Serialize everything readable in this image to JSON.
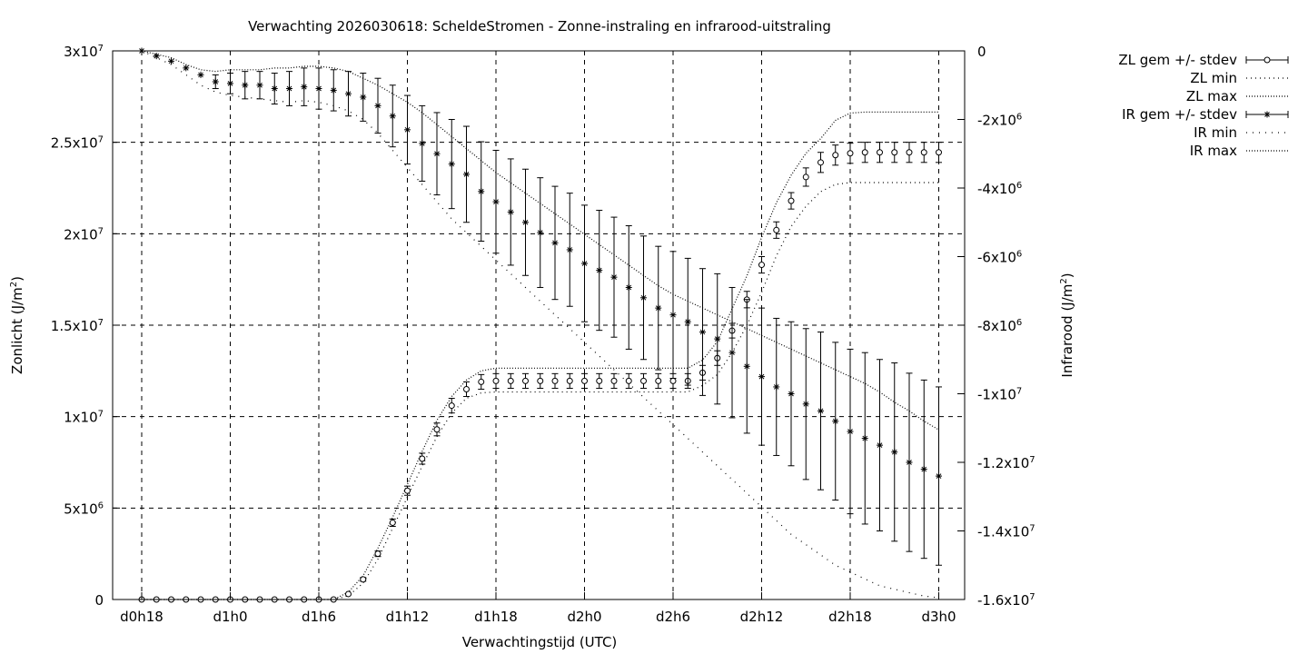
{
  "chart_data": {
    "type": "line",
    "title": "Verwachting 2026030618: ScheldeStromen - Zonne-instraling en infrarood-uitstraling",
    "xlabel": "Verwachtingstijd (UTC)",
    "ylabel_left": {
      "text": "Zonlicht (J/m",
      "sup": "2",
      "end": ")"
    },
    "ylabel_right": {
      "text": "Infrarood (J/m",
      "sup": "2",
      "end": ")"
    },
    "x_range": [
      -1,
      53
    ],
    "y_left_range": [
      0,
      30000000
    ],
    "y_right_range": [
      -16000000,
      0
    ],
    "x_ticks": [
      {
        "x": 0,
        "label": "d0h18"
      },
      {
        "x": 6,
        "label": "d1h0"
      },
      {
        "x": 12,
        "label": "d1h6"
      },
      {
        "x": 18,
        "label": "d1h12"
      },
      {
        "x": 24,
        "label": "d1h18"
      },
      {
        "x": 30,
        "label": "d2h0"
      },
      {
        "x": 36,
        "label": "d2h6"
      },
      {
        "x": 42,
        "label": "d2h12"
      },
      {
        "x": 48,
        "label": "d2h18"
      },
      {
        "x": 54,
        "label": "d3h0"
      }
    ],
    "y_left_ticks": [
      {
        "v": 0,
        "base": "0",
        "sup": ""
      },
      {
        "v": 5000000,
        "base": "5x10",
        "sup": "6"
      },
      {
        "v": 10000000,
        "base": "1x10",
        "sup": "7"
      },
      {
        "v": 15000000,
        "base": "1.5x10",
        "sup": "7"
      },
      {
        "v": 20000000,
        "base": "2x10",
        "sup": "7"
      },
      {
        "v": 25000000,
        "base": "2.5x10",
        "sup": "7"
      },
      {
        "v": 30000000,
        "base": "3x10",
        "sup": "7"
      }
    ],
    "y_right_ticks": [
      {
        "v": 0,
        "base": "0",
        "sup": ""
      },
      {
        "v": -2000000,
        "base": "-2x10",
        "sup": "6"
      },
      {
        "v": -4000000,
        "base": "-4x10",
        "sup": "6"
      },
      {
        "v": -6000000,
        "base": "-6x10",
        "sup": "6"
      },
      {
        "v": -8000000,
        "base": "-8x10",
        "sup": "6"
      },
      {
        "v": -10000000,
        "base": "-1x10",
        "sup": "7"
      },
      {
        "v": -12000000,
        "base": "-1.2x10",
        "sup": "7"
      },
      {
        "v": -14000000,
        "base": "-1.4x10",
        "sup": "7"
      },
      {
        "v": -16000000,
        "base": "-1.6x10",
        "sup": "7"
      }
    ],
    "grid": true,
    "legend_position": "right of plot, top",
    "legend": [
      "ZL gem +/- stdev",
      "ZL min",
      "ZL max",
      "IR gem +/- stdev",
      "IR min",
      "IR max"
    ],
    "x": [
      0,
      1,
      2,
      3,
      4,
      5,
      6,
      7,
      8,
      9,
      10,
      11,
      12,
      13,
      14,
      15,
      16,
      17,
      18,
      19,
      20,
      21,
      22,
      23,
      24,
      25,
      26,
      27,
      28,
      29,
      30,
      31,
      32,
      33,
      34,
      35,
      36,
      37,
      38,
      39,
      40,
      41,
      42,
      43,
      44,
      45,
      46,
      47,
      48,
      49,
      50,
      51,
      52,
      53,
      54
    ],
    "series": [
      {
        "name": "ZL gem +/- stdev",
        "axis": "left",
        "marker": "circle",
        "values": [
          0,
          0,
          0,
          0,
          0,
          0,
          0,
          0,
          0,
          0,
          0,
          0,
          0,
          0,
          300000,
          1100000,
          2500000,
          4200000,
          5950000,
          7700000,
          9300000,
          10600000,
          11500000,
          11900000,
          11950000,
          11950000,
          11950000,
          11950000,
          11950000,
          11950000,
          11950000,
          11950000,
          11950000,
          11950000,
          11950000,
          11950000,
          11950000,
          11950000,
          12400000,
          13200000,
          14700000,
          16400000,
          18300000,
          20200000,
          21800000,
          23100000,
          23900000,
          24300000,
          24400000,
          24450000,
          24450000,
          24450000,
          24450000,
          24450000,
          24450000
        ],
        "stdev": [
          0,
          0,
          0,
          0,
          0,
          0,
          0,
          0,
          0,
          0,
          0,
          0,
          0,
          0,
          0,
          100000,
          150000,
          200000,
          250000,
          300000,
          350000,
          400000,
          400000,
          400000,
          400000,
          400000,
          400000,
          400000,
          400000,
          400000,
          400000,
          400000,
          400000,
          400000,
          400000,
          400000,
          400000,
          400000,
          400000,
          400000,
          400000,
          450000,
          450000,
          450000,
          450000,
          500000,
          550000,
          550000,
          550000,
          550000,
          550000,
          550000,
          550000,
          550000,
          550000
        ]
      },
      {
        "name": "ZL min",
        "axis": "left",
        "values": [
          0,
          0,
          0,
          0,
          0,
          0,
          0,
          0,
          0,
          0,
          0,
          0,
          0,
          0,
          200000,
          900000,
          2200000,
          3900000,
          5600000,
          7300000,
          8900000,
          10200000,
          11000000,
          11300000,
          11350000,
          11350000,
          11350000,
          11350000,
          11350000,
          11350000,
          11350000,
          11350000,
          11350000,
          11350000,
          11350000,
          11350000,
          11350000,
          11350000,
          11700000,
          12300000,
          13500000,
          15000000,
          16800000,
          18800000,
          20400000,
          21500000,
          22300000,
          22700000,
          22800000,
          22800000,
          22800000,
          22800000,
          22800000,
          22800000,
          22800000
        ]
      },
      {
        "name": "ZL max",
        "axis": "left",
        "values": [
          0,
          0,
          0,
          0,
          0,
          0,
          0,
          0,
          0,
          0,
          0,
          0,
          0,
          0,
          400000,
          1300000,
          2800000,
          4500000,
          6300000,
          8100000,
          9800000,
          11100000,
          12000000,
          12500000,
          12650000,
          12650000,
          12650000,
          12650000,
          12650000,
          12650000,
          12650000,
          12650000,
          12650000,
          12650000,
          12650000,
          12650000,
          12650000,
          12650000,
          13100000,
          14100000,
          15900000,
          17700000,
          19800000,
          21700000,
          23200000,
          24400000,
          25200000,
          26200000,
          26600000,
          26650000,
          26650000,
          26650000,
          26650000,
          26650000,
          26650000
        ]
      },
      {
        "name": "IR gem +/- stdev",
        "axis": "right",
        "marker": "star",
        "values": [
          0,
          -150000,
          -300000,
          -500000,
          -700000,
          -900000,
          -950000,
          -1000000,
          -1000000,
          -1100000,
          -1100000,
          -1050000,
          -1100000,
          -1150000,
          -1250000,
          -1350000,
          -1600000,
          -1900000,
          -2300000,
          -2700000,
          -3000000,
          -3300000,
          -3600000,
          -4100000,
          -4400000,
          -4700000,
          -5000000,
          -5300000,
          -5600000,
          -5800000,
          -6200000,
          -6400000,
          -6600000,
          -6900000,
          -7200000,
          -7500000,
          -7700000,
          -7900000,
          -8200000,
          -8400000,
          -8800000,
          -9200000,
          -9500000,
          -9800000,
          -10000000,
          -10300000,
          -10500000,
          -10800000,
          -11100000,
          -11300000,
          -11500000,
          -11700000,
          -12000000,
          -12200000,
          -12400000
        ],
        "stdev": [
          0,
          0,
          0,
          0,
          0,
          200000,
          300000,
          400000,
          400000,
          450000,
          500000,
          550000,
          600000,
          600000,
          650000,
          700000,
          800000,
          900000,
          1000000,
          1100000,
          1200000,
          1300000,
          1400000,
          1450000,
          1500000,
          1550000,
          1550000,
          1600000,
          1650000,
          1650000,
          1700000,
          1750000,
          1750000,
          1800000,
          1800000,
          1800000,
          1850000,
          1850000,
          1850000,
          1900000,
          1900000,
          1950000,
          2000000,
          2000000,
          2100000,
          2200000,
          2300000,
          2300000,
          2400000,
          2500000,
          2500000,
          2600000,
          2600000,
          2600000,
          2600000
        ]
      },
      {
        "name": "IR min",
        "axis": "right",
        "values": [
          0,
          -200000,
          -400000,
          -700000,
          -1000000,
          -1200000,
          -1300000,
          -1350000,
          -1400000,
          -1450000,
          -1500000,
          -1450000,
          -1500000,
          -1600000,
          -1750000,
          -2000000,
          -2400000,
          -2900000,
          -3400000,
          -3900000,
          -4400000,
          -4900000,
          -5300000,
          -5700000,
          -6100000,
          -6500000,
          -6900000,
          -7300000,
          -7700000,
          -8100000,
          -8500000,
          -8900000,
          -9300000,
          -9700000,
          -10100000,
          -10500000,
          -10900000,
          -11300000,
          -11700000,
          -12100000,
          -12500000,
          -12900000,
          -13300000,
          -13700000,
          -14100000,
          -14400000,
          -14700000,
          -15000000,
          -15200000,
          -15400000,
          -15600000,
          -15700000,
          -15800000,
          -15900000,
          -15950000
        ]
      },
      {
        "name": "IR max",
        "axis": "right",
        "values": [
          0,
          -100000,
          -200000,
          -400000,
          -550000,
          -600000,
          -550000,
          -550000,
          -550000,
          -500000,
          -500000,
          -450000,
          -450000,
          -500000,
          -600000,
          -800000,
          -1000000,
          -1250000,
          -1500000,
          -1800000,
          -2150000,
          -2500000,
          -2850000,
          -3200000,
          -3550000,
          -3850000,
          -4150000,
          -4450000,
          -4750000,
          -5050000,
          -5350000,
          -5650000,
          -5950000,
          -6250000,
          -6550000,
          -6850000,
          -7100000,
          -7300000,
          -7500000,
          -7700000,
          -7900000,
          -8100000,
          -8300000,
          -8500000,
          -8700000,
          -8900000,
          -9100000,
          -9300000,
          -9500000,
          -9700000,
          -9950000,
          -10250000,
          -10500000,
          -10800000,
          -11050000
        ]
      }
    ]
  }
}
